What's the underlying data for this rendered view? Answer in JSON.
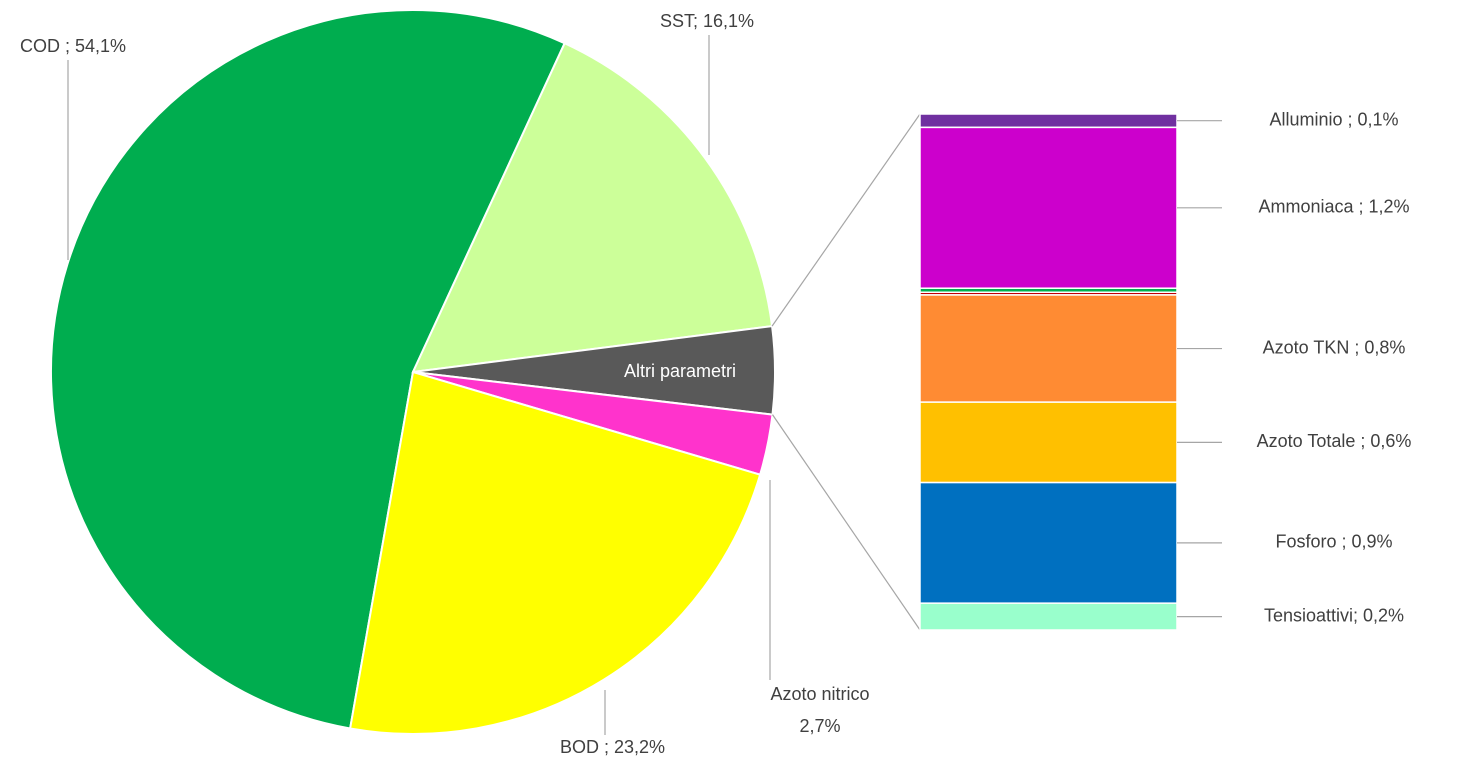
{
  "chart_data": [
    {
      "type": "pie",
      "labels": [
        "COD ; 54,1%",
        "SST; 16,1%",
        "Altri parametri",
        [
          "Azoto nitrico",
          "2,7%"
        ],
        "BOD ; 23,2%"
      ],
      "values": [
        54.1,
        16.1,
        3.9,
        2.7,
        23.2
      ],
      "colors": [
        "#00ad4f",
        "#ccff99",
        "#595959",
        "#ff33cc",
        "#ffff00"
      ]
    },
    {
      "type": "stacked-bar",
      "labels": [
        "Alluminio ; 0,1%",
        "Ammoniaca ; 1,2%",
        null,
        null,
        "Azoto TKN ; 0,8%",
        "Azoto Totale ; 0,6%",
        "Fosforo ; 0,9%",
        "Tensioattivi; 0,2%"
      ],
      "values": [
        0.1,
        1.2,
        0.03,
        0.02,
        0.8,
        0.6,
        0.9,
        0.2
      ],
      "colors": [
        "#7030a0",
        "#cc00cc",
        "#00b050",
        "#c00000",
        "#ff8b33",
        "#ffc000",
        "#0070c0",
        "#99ffcc"
      ]
    }
  ]
}
